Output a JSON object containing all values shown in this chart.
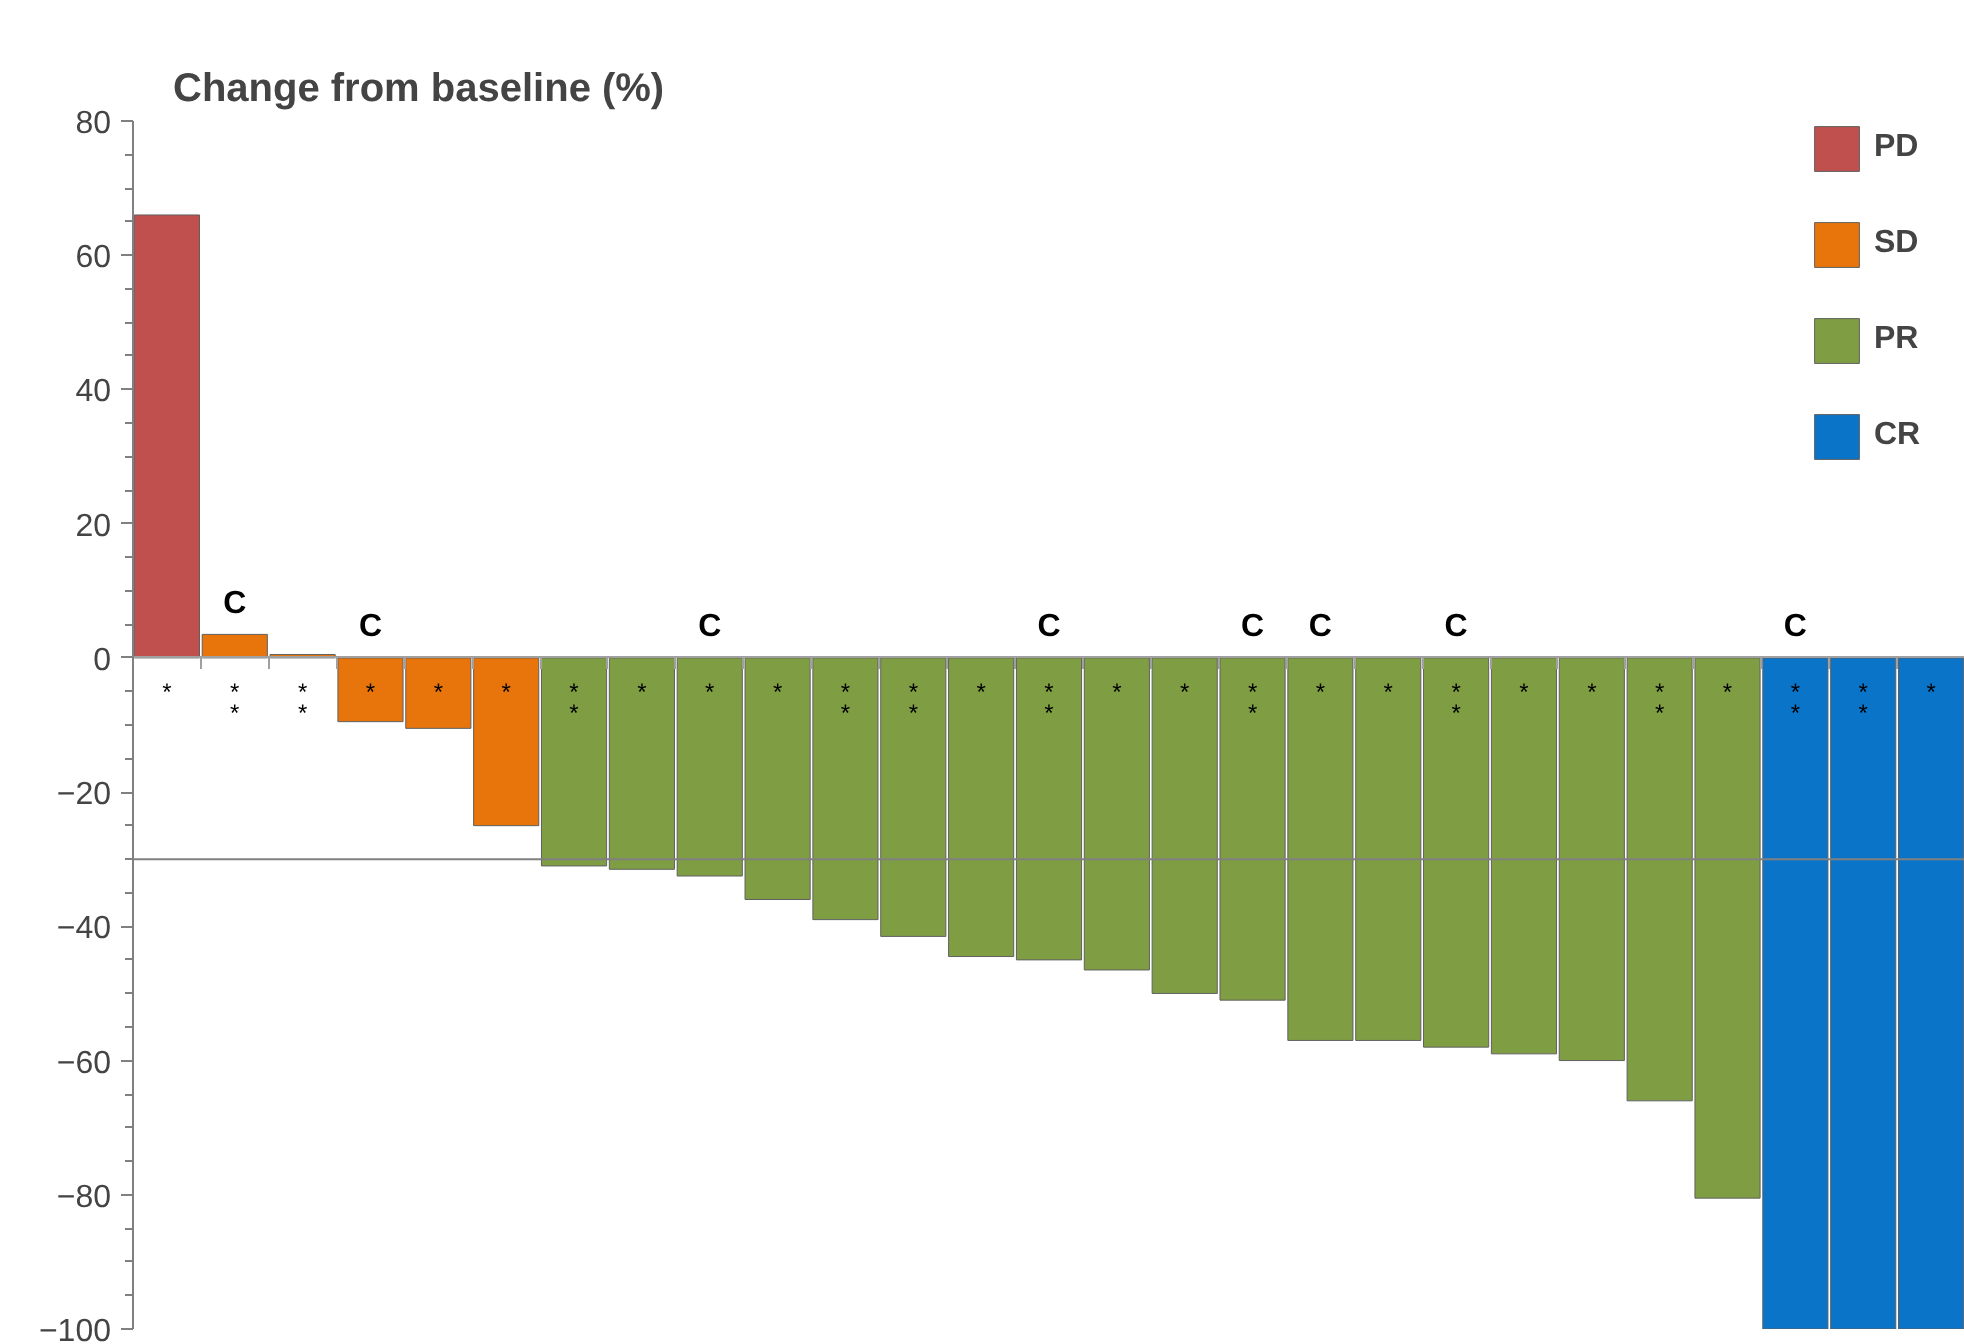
{
  "chart_data": {
    "type": "bar",
    "title": "Change from baseline (%)",
    "categories": [
      "*",
      "*\n*",
      "*\n*",
      "*",
      "*",
      "*",
      "*\n*",
      "*",
      "*",
      "*",
      "*\n*",
      "*\n*",
      "*",
      "*\n*",
      "*",
      "*",
      "*\n*",
      "*",
      "*",
      "*\n*",
      "*",
      "*",
      "*\n*",
      "*",
      "*\n*",
      "*\n*",
      "*"
    ],
    "ylim": [
      -100,
      80
    ],
    "yticks": [
      -100,
      -80,
      -60,
      -40,
      -20,
      0,
      20,
      40,
      60,
      80
    ],
    "grid": false,
    "legend": "top right",
    "series": [
      {
        "name": "PD",
        "color": "#c0504d",
        "values": [
          66,
          null,
          null,
          null,
          null,
          null,
          null,
          null,
          null,
          null,
          null,
          null,
          null,
          null,
          null,
          null,
          null,
          null,
          null,
          null,
          null,
          null,
          null,
          null,
          null,
          null,
          null
        ]
      },
      {
        "name": "SD",
        "color": "#e8740c",
        "values": [
          null,
          3.5,
          0.5,
          -9.5,
          -10.5,
          -25,
          null,
          null,
          null,
          null,
          null,
          null,
          null,
          null,
          null,
          null,
          null,
          null,
          null,
          null,
          null,
          null,
          null,
          null,
          null,
          null,
          null
        ],
        "value_labels": [
          null,
          "C",
          null,
          "C",
          null,
          null,
          null,
          null,
          null,
          null,
          null,
          null,
          null,
          null,
          null,
          null,
          null,
          null,
          null,
          null,
          null,
          null,
          null,
          null,
          null,
          null,
          null
        ]
      },
      {
        "name": "PR",
        "color": "#7f9e43",
        "values": [
          null,
          null,
          null,
          null,
          null,
          null,
          -31,
          -31.5,
          -32.5,
          -36,
          -39,
          -41.5,
          -44.5,
          -45,
          -46.5,
          -50,
          -51,
          -57,
          -57,
          -58,
          -59,
          -60,
          -66,
          -80.5,
          null,
          null,
          null
        ],
        "value_labels": [
          null,
          null,
          null,
          null,
          null,
          null,
          null,
          null,
          "C",
          null,
          null,
          null,
          null,
          "C",
          null,
          null,
          "C",
          "C",
          null,
          "C",
          null,
          null,
          null,
          null,
          null,
          null,
          null
        ]
      },
      {
        "name": "CR",
        "color": "#0a74c8",
        "values": [
          null,
          null,
          null,
          null,
          null,
          null,
          null,
          null,
          null,
          null,
          null,
          null,
          null,
          null,
          null,
          null,
          null,
          null,
          null,
          null,
          null,
          null,
          null,
          null,
          -100,
          -100,
          -100
        ],
        "value_labels": [
          null,
          null,
          null,
          null,
          null,
          null,
          null,
          null,
          null,
          null,
          null,
          null,
          null,
          null,
          null,
          null,
          null,
          null,
          null,
          null,
          null,
          null,
          null,
          null,
          "C",
          null,
          null
        ]
      }
    ],
    "ref_lines": [
      {
        "axis": "y",
        "value": -30,
        "color": "#808080"
      }
    ]
  }
}
